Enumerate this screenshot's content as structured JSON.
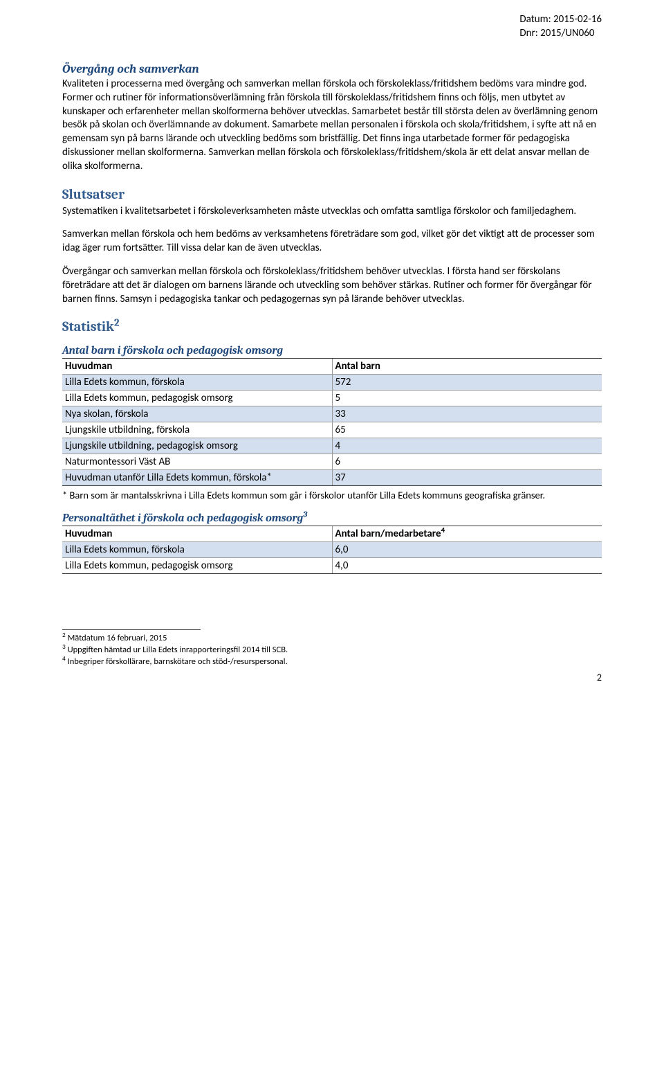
{
  "header": {
    "date_label": "Datum: 2015-02-16",
    "dnr_label": "Dnr: 2015/UN060"
  },
  "section1": {
    "title": "Övergång och samverkan",
    "body": "Kvaliteten i processerna med övergång och samverkan mellan förskola och förskoleklass/fritidshem bedöms vara mindre god. Former och rutiner för informationsöverlämning från förskola till förskoleklass/fritidshem finns och följs, men utbytet av kunskaper och erfarenheter mellan skolformerna behöver utvecklas. Samarbetet består till största delen av överlämning genom besök på skolan och överlämnande av dokument. Samarbete mellan personalen i förskola och skola/fritidshem, i syfte att nå en gemensam syn på barns lärande och utveckling bedöms som bristfällig. Det finns inga utarbetade former för pedagogiska diskussioner mellan skolformerna. Samverkan mellan förskola och förskoleklass/fritidshem/skola är ett delat ansvar mellan de olika skolformerna."
  },
  "section2": {
    "title": "Slutsatser",
    "p1": "Systematiken i kvalitetsarbetet i förskoleverksamheten måste utvecklas och omfatta samtliga förskolor och familjedaghem.",
    "p2": "Samverkan mellan förskola och hem bedöms av verksamhetens företrädare som god, vilket gör det viktigt att de processer som idag äger rum fortsätter. Till vissa delar kan de även utvecklas.",
    "p3": "Övergångar och samverkan mellan förskola och förskoleklass/fritidshem behöver utvecklas. I första hand ser förskolans företrädare att det är dialogen om barnens lärande och utveckling som behöver stärkas. Rutiner och former för övergångar för barnen finns. Samsyn i pedagogiska tankar och pedagogernas syn på lärande behöver utvecklas."
  },
  "statistik": {
    "title": "Statistik",
    "title_sup": "2"
  },
  "table1": {
    "caption": "Antal barn i förskola och pedagogisk omsorg",
    "col1": "Huvudman",
    "col2": "Antal barn",
    "rows": [
      {
        "c1": "Lilla Edets kommun, förskola",
        "c2": "572",
        "shade": true
      },
      {
        "c1": "Lilla Edets kommun, pedagogisk omsorg",
        "c2": "5",
        "shade": false
      },
      {
        "c1": "Nya skolan, förskola",
        "c2": "33",
        "shade": true
      },
      {
        "c1": "Ljungskile utbildning, förskola",
        "c2": "65",
        "shade": false
      },
      {
        "c1": "Ljungskile utbildning, pedagogisk omsorg",
        "c2": "4",
        "shade": true
      },
      {
        "c1": "Naturmontessori Väst AB",
        "c2": "6",
        "shade": false
      },
      {
        "c1": "Huvudman utanför Lilla Edets kommun, förskola*",
        "c2": "37",
        "shade": true
      }
    ],
    "note": "* Barn som är mantalsskrivna i Lilla Edets kommun som går i förskolor utanför Lilla Edets kommuns geografiska gränser."
  },
  "table2": {
    "caption": "Personaltäthet i förskola och pedagogisk omsorg",
    "caption_sup": "3",
    "col1": "Huvudman",
    "col2": "Antal barn/medarbetare",
    "col2_sup": "4",
    "rows": [
      {
        "c1": "Lilla Edets kommun, förskola",
        "c2": "6,0",
        "shade": true
      },
      {
        "c1": "Lilla Edets kommun, pedagogisk omsorg",
        "c2": "4,0",
        "shade": false
      }
    ]
  },
  "footnotes": {
    "f2": "Mätdatum 16 februari, 2015",
    "f3": "Uppgiften hämtad ur Lilla Edets inrapporteringsfil 2014 till SCB.",
    "f4": "Inbegriper förskollärare, barnskötare och stöd-/resurspersonal."
  },
  "page_number": "2"
}
